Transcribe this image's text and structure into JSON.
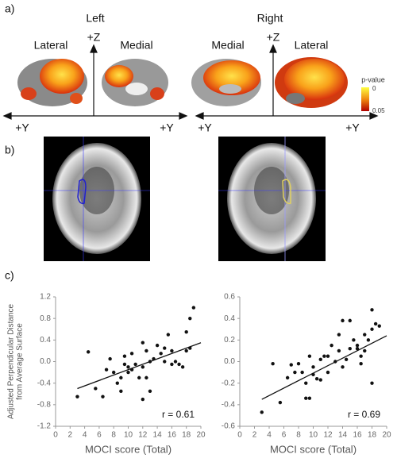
{
  "panel_a": {
    "label": "a)",
    "left": "Left",
    "right": "Right",
    "views": [
      "Lateral",
      "Medial",
      "Medial",
      "Lateral"
    ],
    "z_axis": [
      "+Z",
      "+Z"
    ],
    "y_axis": [
      "+Y",
      "+Y",
      "+Y",
      "+Y"
    ],
    "colorbar": {
      "title": "p-value",
      "top": "0",
      "bottom": "0.05"
    }
  },
  "panel_b": {
    "label": "b)"
  },
  "panel_c": {
    "label": "c)"
  },
  "chart_data": [
    {
      "type": "scatter",
      "y_label": [
        "Adjusted Perpendicular Distance",
        "from Average Surface"
      ],
      "x_label": "MOCI score (Total)",
      "annotation": "r = 0.61",
      "color": "#111111",
      "xlim": [
        0,
        20
      ],
      "xticks": [
        0,
        2,
        4,
        6,
        8,
        10,
        12,
        14,
        16,
        18,
        20
      ],
      "ylim": [
        -1.2,
        1.2
      ],
      "yticks": [
        -1.2,
        -0.8,
        -0.4,
        {
          "value": 0,
          "label": "0.0"
        },
        0.4,
        0.8,
        1.2
      ],
      "x": [
        3,
        4.5,
        5.5,
        6.5,
        7,
        7.5,
        8,
        8.5,
        9,
        9,
        9.5,
        9.5,
        10,
        10,
        10.5,
        10.5,
        11,
        11.5,
        12,
        12,
        12,
        12.5,
        12.5,
        13,
        13,
        13.5,
        14,
        14.5,
        15,
        15,
        15.5,
        16,
        16,
        16.5,
        17,
        17.5,
        18,
        18,
        18.5,
        19,
        18.5
      ],
      "y": [
        -0.65,
        0.18,
        -0.5,
        -0.65,
        -0.15,
        0.05,
        -0.2,
        -0.4,
        -0.55,
        -0.3,
        0.1,
        -0.05,
        -0.2,
        -0.1,
        0.15,
        -0.15,
        -0.05,
        -0.3,
        0.35,
        -0.1,
        -0.7,
        0.2,
        -0.3,
        0,
        -0.55,
        0.05,
        0.3,
        0.15,
        0,
        0.25,
        0.5,
        0.2,
        -0.05,
        0,
        -0.05,
        -0.1,
        0.55,
        0.2,
        0.8,
        1.0,
        0.25
      ],
      "trend_line": {
        "x": [
          3,
          20
        ],
        "y": [
          -0.5,
          0.35
        ]
      }
    },
    {
      "type": "scatter",
      "x_label": "MOCI score (Total)",
      "annotation": "r = 0.69",
      "color": "#111111",
      "xlim": [
        0,
        20
      ],
      "xticks": [
        0,
        2,
        4,
        6,
        8,
        10,
        12,
        14,
        16,
        18,
        20
      ],
      "ylim": [
        -0.6,
        0.6
      ],
      "yticks": [
        -0.6,
        -0.4,
        -0.2,
        {
          "value": 0,
          "label": "0.0"
        },
        0.2,
        0.4,
        0.6
      ],
      "x": [
        3,
        4.5,
        5.5,
        6.5,
        7,
        7.5,
        8,
        8.5,
        9,
        9,
        9.5,
        9.5,
        10,
        10,
        10.5,
        11,
        11,
        11.5,
        12,
        12,
        12.5,
        13,
        13.5,
        13.5,
        14,
        14,
        14.5,
        15,
        15,
        15.5,
        16,
        16,
        16.5,
        16.5,
        17,
        17,
        17.5,
        18,
        18,
        18.5,
        19,
        18
      ],
      "y": [
        -0.47,
        -0.02,
        -0.38,
        -0.15,
        -0.03,
        -0.1,
        -0.02,
        -0.1,
        -0.2,
        -0.34,
        0.05,
        -0.34,
        -0.12,
        -0.05,
        -0.16,
        -0.17,
        0.02,
        0.05,
        0.05,
        -0.1,
        0.15,
        0,
        0.1,
        0.25,
        0.38,
        -0.05,
        0.02,
        0.12,
        0.38,
        0.2,
        0.12,
        0.15,
        -0.02,
        0.05,
        0.25,
        0.1,
        0.2,
        -0.2,
        0.48,
        0.35,
        0.33,
        0.3
      ],
      "trend_line": {
        "x": [
          3,
          20
        ],
        "y": [
          -0.35,
          0.24
        ]
      }
    }
  ]
}
